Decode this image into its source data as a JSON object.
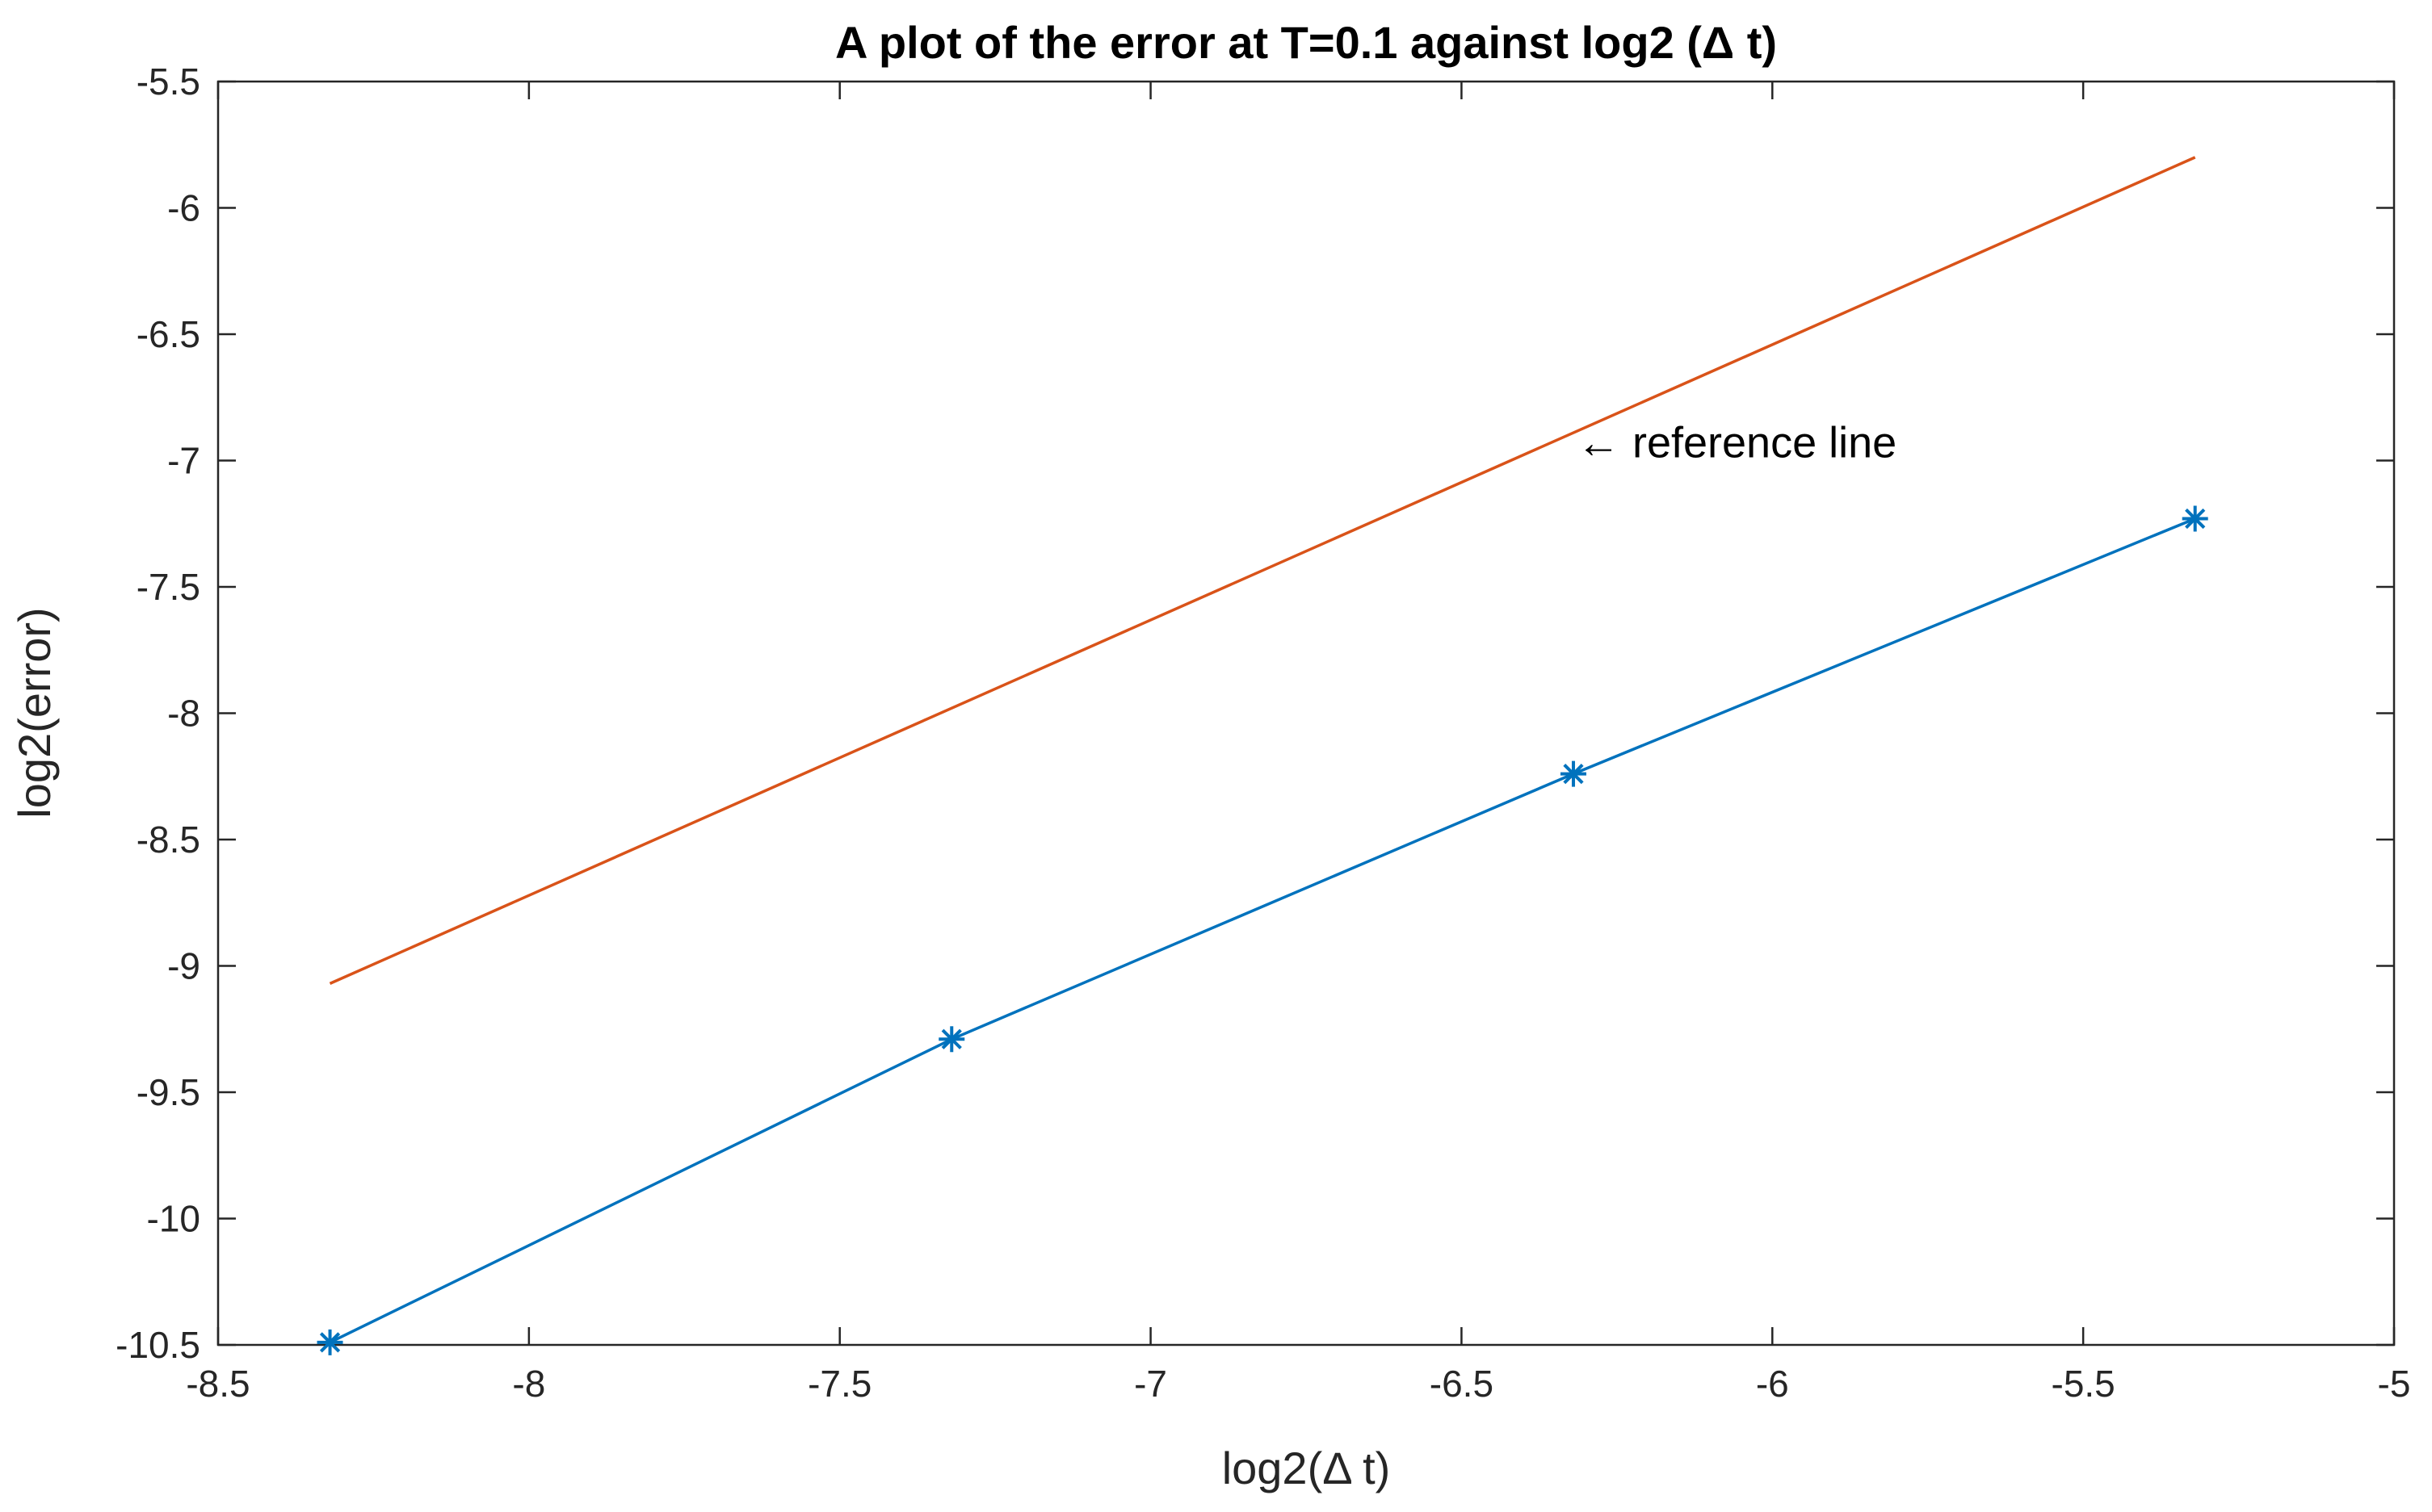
{
  "chart_data": {
    "type": "line",
    "title": "A plot of the error at T=0.1 against log2 (Δ t)",
    "xlabel": "log2(Δ t)",
    "ylabel": "log2(error)",
    "xlim": [
      -8.5,
      -5
    ],
    "ylim": [
      -10.5,
      -5.5
    ],
    "xticks": [
      -8.5,
      -8,
      -7.5,
      -7,
      -6.5,
      -6,
      -5.5,
      -5
    ],
    "yticks": [
      -10.5,
      -10,
      -9.5,
      -9,
      -8.5,
      -8,
      -7.5,
      -7,
      -6.5,
      -6,
      -5.5
    ],
    "xtick_labels": [
      "-8.5",
      "-8",
      "-7.5",
      "-7",
      "-6.5",
      "-6",
      "-5.5",
      "-5"
    ],
    "ytick_labels": [
      "-10.5",
      "-10",
      "-9.5",
      "-9",
      "-8.5",
      "-8",
      "-7.5",
      "-7",
      "-6.5",
      "-6",
      "-5.5"
    ],
    "grid": false,
    "series": [
      {
        "color": "#0072BD",
        "marker": "asterisk",
        "x": [
          -8.32,
          -7.32,
          -6.32,
          -5.32
        ],
        "y": [
          -10.49,
          -9.29,
          -8.24,
          -7.23
        ]
      },
      {
        "color": "#D95319",
        "marker": "none",
        "x": [
          -8.32,
          -5.32
        ],
        "y": [
          -9.07,
          -5.8
        ]
      }
    ],
    "annotation": {
      "text": "←  reference line",
      "x": -6.32,
      "y": -6.93
    }
  }
}
